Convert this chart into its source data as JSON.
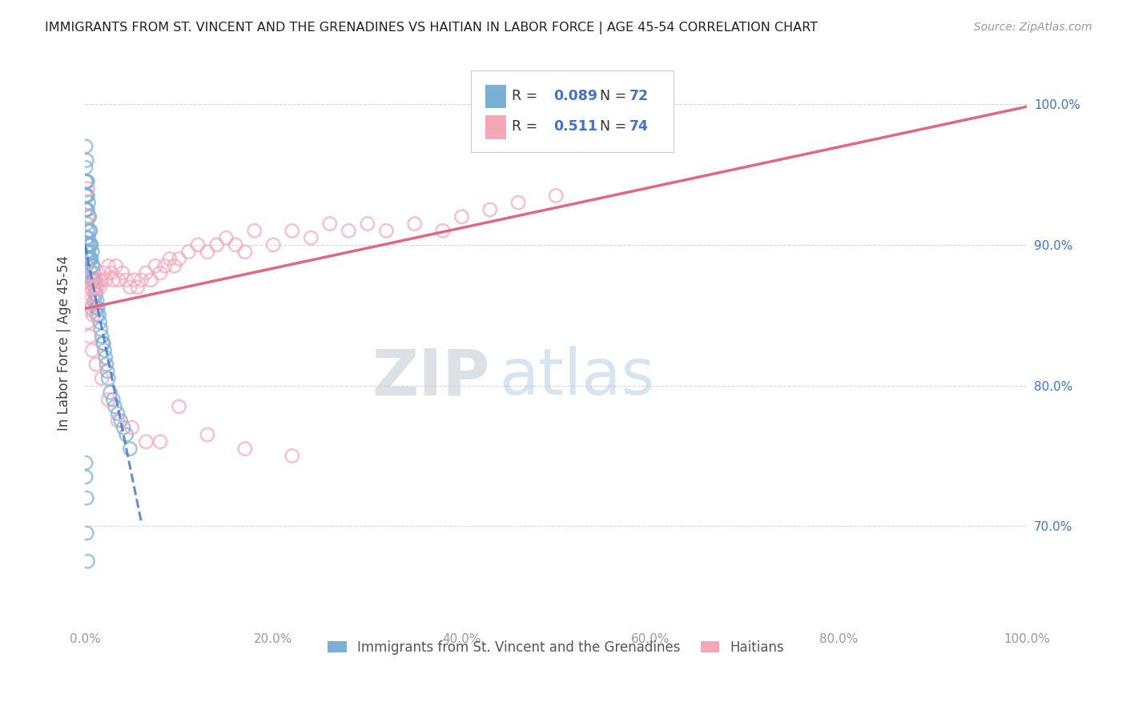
{
  "title": "IMMIGRANTS FROM ST. VINCENT AND THE GRENADINES VS HAITIAN IN LABOR FORCE | AGE 45-54 CORRELATION CHART",
  "source": "Source: ZipAtlas.com",
  "ylabel": "In Labor Force | Age 45-54",
  "xlim": [
    0.0,
    1.0
  ],
  "ylim": [
    0.63,
    1.03
  ],
  "xticks": [
    0.0,
    0.2,
    0.4,
    0.6,
    0.8,
    1.0
  ],
  "xticklabels": [
    "0.0%",
    "20.0%",
    "40.0%",
    "60.0%",
    "80.0%",
    "100.0%"
  ],
  "yticks": [
    0.7,
    0.8,
    0.9,
    1.0
  ],
  "yticklabels": [
    "70.0%",
    "80.0%",
    "90.0%",
    "100.0%"
  ],
  "blue_color": "#7bafd4",
  "pink_color": "#f4a7b9",
  "blue_R": 0.089,
  "blue_N": 72,
  "pink_R": 0.511,
  "pink_N": 74,
  "legend1_label": "Immigrants from St. Vincent and the Grenadines",
  "legend2_label": "Haitians",
  "background_color": "#ffffff",
  "grid_color": "#d8d8d8",
  "title_color": "#222222",
  "axis_label_color": "#444444",
  "tick_label_color": "#999999",
  "right_tick_color": "#4472c4",
  "blue_line_color": "#4472c4",
  "pink_line_color": "#e06880",
  "R_label_color": "#4472c4",
  "watermark_color": "#d0dde8",
  "blue_x": [
    0.001,
    0.001,
    0.001,
    0.001,
    0.001,
    0.002,
    0.002,
    0.002,
    0.002,
    0.002,
    0.002,
    0.002,
    0.002,
    0.003,
    0.003,
    0.003,
    0.003,
    0.003,
    0.003,
    0.004,
    0.004,
    0.004,
    0.004,
    0.005,
    0.005,
    0.005,
    0.005,
    0.006,
    0.006,
    0.006,
    0.007,
    0.007,
    0.007,
    0.008,
    0.008,
    0.008,
    0.009,
    0.009,
    0.01,
    0.01,
    0.01,
    0.011,
    0.011,
    0.012,
    0.012,
    0.013,
    0.013,
    0.014,
    0.015,
    0.016,
    0.017,
    0.018,
    0.019,
    0.02,
    0.021,
    0.022,
    0.023,
    0.024,
    0.025,
    0.027,
    0.03,
    0.032,
    0.035,
    0.038,
    0.041,
    0.044,
    0.048,
    0.001,
    0.001,
    0.002,
    0.002,
    0.003
  ],
  "blue_y": [
    0.97,
    0.955,
    0.945,
    0.935,
    0.925,
    0.96,
    0.945,
    0.935,
    0.925,
    0.915,
    0.905,
    0.895,
    0.885,
    0.945,
    0.935,
    0.925,
    0.91,
    0.9,
    0.89,
    0.93,
    0.92,
    0.905,
    0.895,
    0.92,
    0.91,
    0.9,
    0.89,
    0.91,
    0.9,
    0.89,
    0.9,
    0.89,
    0.88,
    0.895,
    0.885,
    0.875,
    0.885,
    0.875,
    0.88,
    0.87,
    0.86,
    0.875,
    0.865,
    0.865,
    0.855,
    0.86,
    0.85,
    0.855,
    0.85,
    0.845,
    0.84,
    0.835,
    0.83,
    0.83,
    0.825,
    0.82,
    0.815,
    0.81,
    0.805,
    0.795,
    0.79,
    0.785,
    0.78,
    0.775,
    0.77,
    0.765,
    0.755,
    0.745,
    0.735,
    0.72,
    0.695,
    0.675
  ],
  "pink_x": [
    0.001,
    0.002,
    0.003,
    0.003,
    0.004,
    0.005,
    0.005,
    0.006,
    0.007,
    0.008,
    0.009,
    0.01,
    0.011,
    0.012,
    0.013,
    0.015,
    0.016,
    0.018,
    0.02,
    0.022,
    0.025,
    0.028,
    0.03,
    0.033,
    0.036,
    0.04,
    0.044,
    0.048,
    0.052,
    0.056,
    0.06,
    0.065,
    0.07,
    0.075,
    0.08,
    0.085,
    0.09,
    0.095,
    0.1,
    0.11,
    0.12,
    0.13,
    0.14,
    0.15,
    0.16,
    0.17,
    0.18,
    0.2,
    0.22,
    0.24,
    0.26,
    0.28,
    0.3,
    0.32,
    0.35,
    0.38,
    0.4,
    0.43,
    0.46,
    0.5,
    0.003,
    0.005,
    0.008,
    0.012,
    0.018,
    0.025,
    0.035,
    0.05,
    0.065,
    0.08,
    0.1,
    0.13,
    0.17,
    0.22
  ],
  "pink_y": [
    0.885,
    0.875,
    0.94,
    0.92,
    0.87,
    0.865,
    0.86,
    0.855,
    0.87,
    0.855,
    0.85,
    0.87,
    0.865,
    0.875,
    0.87,
    0.875,
    0.87,
    0.875,
    0.88,
    0.875,
    0.885,
    0.88,
    0.875,
    0.885,
    0.875,
    0.88,
    0.875,
    0.87,
    0.875,
    0.87,
    0.875,
    0.88,
    0.875,
    0.885,
    0.88,
    0.885,
    0.89,
    0.885,
    0.89,
    0.895,
    0.9,
    0.895,
    0.9,
    0.905,
    0.9,
    0.895,
    0.91,
    0.9,
    0.91,
    0.905,
    0.915,
    0.91,
    0.915,
    0.91,
    0.915,
    0.91,
    0.92,
    0.925,
    0.93,
    0.935,
    0.845,
    0.835,
    0.825,
    0.815,
    0.805,
    0.79,
    0.775,
    0.77,
    0.76,
    0.76,
    0.785,
    0.765,
    0.755,
    0.75
  ]
}
